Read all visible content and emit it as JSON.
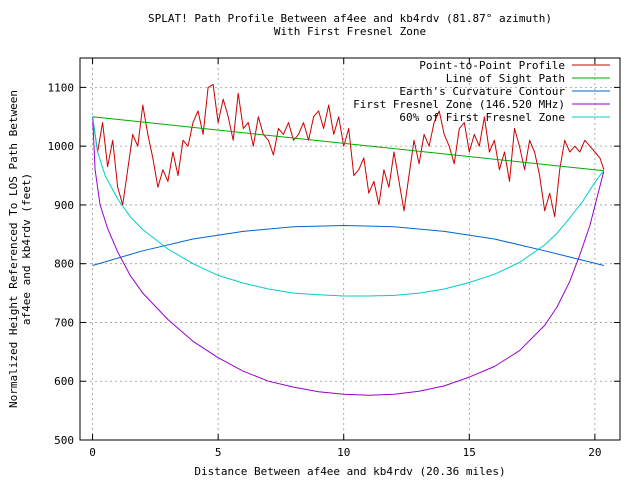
{
  "chart_data": {
    "type": "line",
    "title_lines": [
      "SPLAT! Path Profile Between af4ee and kb4rdv (81.87° azimuth)",
      "With First Fresnel Zone"
    ],
    "xlabel": "Distance Between af4ee and kb4rdv (20.36 miles)",
    "ylabel_lines": [
      "Normalized Height Referenced To LOS Path Between",
      "af4ee and kb4rdv (feet)"
    ],
    "xlim": [
      -0.5,
      21.0
    ],
    "ylim": [
      500,
      1150
    ],
    "x_ticks": [
      0,
      5,
      10,
      15,
      20
    ],
    "y_ticks": [
      500,
      600,
      700,
      800,
      900,
      1000,
      1100
    ],
    "grid": true,
    "legend_position": "top-right",
    "series": [
      {
        "name": "Point-to-Point Profile",
        "color": "#cc0000",
        "x": [
          0,
          0.2,
          0.4,
          0.6,
          0.8,
          1.0,
          1.2,
          1.4,
          1.6,
          1.8,
          2.0,
          2.2,
          2.4,
          2.6,
          2.8,
          3.0,
          3.2,
          3.4,
          3.6,
          3.8,
          4.0,
          4.2,
          4.4,
          4.6,
          4.8,
          5.0,
          5.2,
          5.4,
          5.6,
          5.8,
          6.0,
          6.2,
          6.4,
          6.6,
          6.8,
          7.0,
          7.2,
          7.4,
          7.6,
          7.8,
          8.0,
          8.2,
          8.4,
          8.6,
          8.8,
          9.0,
          9.2,
          9.4,
          9.6,
          9.8,
          10.0,
          10.2,
          10.4,
          10.6,
          10.8,
          11.0,
          11.2,
          11.4,
          11.6,
          11.8,
          12.0,
          12.2,
          12.4,
          12.6,
          12.8,
          13.0,
          13.2,
          13.4,
          13.6,
          13.8,
          14.0,
          14.2,
          14.4,
          14.6,
          14.8,
          15.0,
          15.2,
          15.4,
          15.6,
          15.8,
          16.0,
          16.2,
          16.4,
          16.6,
          16.8,
          17.0,
          17.2,
          17.4,
          17.6,
          17.8,
          18.0,
          18.2,
          18.4,
          18.6,
          18.8,
          19.0,
          19.2,
          19.4,
          19.6,
          19.8,
          20.0,
          20.2,
          20.36
        ],
        "values": [
          1050,
          990,
          1040,
          965,
          1010,
          930,
          900,
          960,
          1020,
          1000,
          1070,
          1020,
          980,
          930,
          960,
          940,
          990,
          950,
          1010,
          1000,
          1040,
          1060,
          1020,
          1100,
          1105,
          1040,
          1080,
          1050,
          1010,
          1090,
          1030,
          1040,
          1000,
          1050,
          1020,
          1010,
          985,
          1030,
          1020,
          1040,
          1010,
          1020,
          1040,
          1010,
          1050,
          1060,
          1030,
          1070,
          1020,
          1050,
          1000,
          1030,
          950,
          960,
          980,
          920,
          940,
          900,
          960,
          930,
          990,
          940,
          890,
          950,
          1010,
          970,
          1020,
          1000,
          1040,
          1060,
          1020,
          1000,
          970,
          1030,
          1040,
          990,
          1020,
          1000,
          1050,
          990,
          1010,
          960,
          990,
          940,
          1030,
          1000,
          960,
          1010,
          990,
          950,
          890,
          920,
          880,
          960,
          1010,
          990,
          1000,
          990,
          1010,
          1000,
          990,
          980,
          960
        ]
      },
      {
        "name": "Line of Sight Path",
        "color": "#00aa00",
        "x": [
          0,
          20.36
        ],
        "values": [
          1050,
          958
        ]
      },
      {
        "name": "Earth's Curvature Contour",
        "color": "#0066cc",
        "x": [
          0,
          2,
          4,
          6,
          8,
          10,
          12,
          14,
          16,
          18,
          20.36
        ],
        "values": [
          797,
          822,
          842,
          855,
          863,
          865,
          863,
          855,
          842,
          822,
          797
        ]
      },
      {
        "name": "First Fresnel Zone (146.520 MHz)",
        "color": "#9900cc",
        "x": [
          0,
          0.1,
          0.3,
          0.6,
          1.0,
          1.5,
          2.0,
          3.0,
          4.0,
          5.0,
          6.0,
          7.0,
          8.0,
          9.0,
          10.0,
          11.0,
          11.5,
          12.0,
          13.0,
          14.0,
          15.0,
          16.0,
          17.0,
          18.0,
          18.5,
          19.0,
          19.4,
          19.8,
          20.1,
          20.36
        ],
        "values": [
          1050,
          960,
          900,
          860,
          820,
          780,
          750,
          705,
          668,
          640,
          617,
          600,
          590,
          582,
          578,
          576,
          577,
          578,
          583,
          592,
          607,
          625,
          652,
          695,
          727,
          770,
          815,
          865,
          915,
          958
        ]
      },
      {
        "name": "60% of First Fresnel Zone",
        "color": "#00cccc",
        "x": [
          0,
          0.2,
          0.5,
          1.0,
          1.5,
          2.0,
          3.0,
          4.0,
          5.0,
          6.0,
          7.0,
          8.0,
          9.0,
          10.0,
          11.0,
          12.0,
          13.0,
          14.0,
          15.0,
          16.0,
          17.0,
          18.0,
          18.5,
          19.0,
          19.5,
          19.9,
          20.2,
          20.36
        ],
        "values": [
          1050,
          990,
          950,
          910,
          880,
          858,
          825,
          800,
          780,
          767,
          757,
          750,
          747,
          745,
          745,
          746,
          750,
          757,
          768,
          782,
          802,
          832,
          852,
          878,
          905,
          932,
          950,
          958
        ]
      }
    ]
  }
}
